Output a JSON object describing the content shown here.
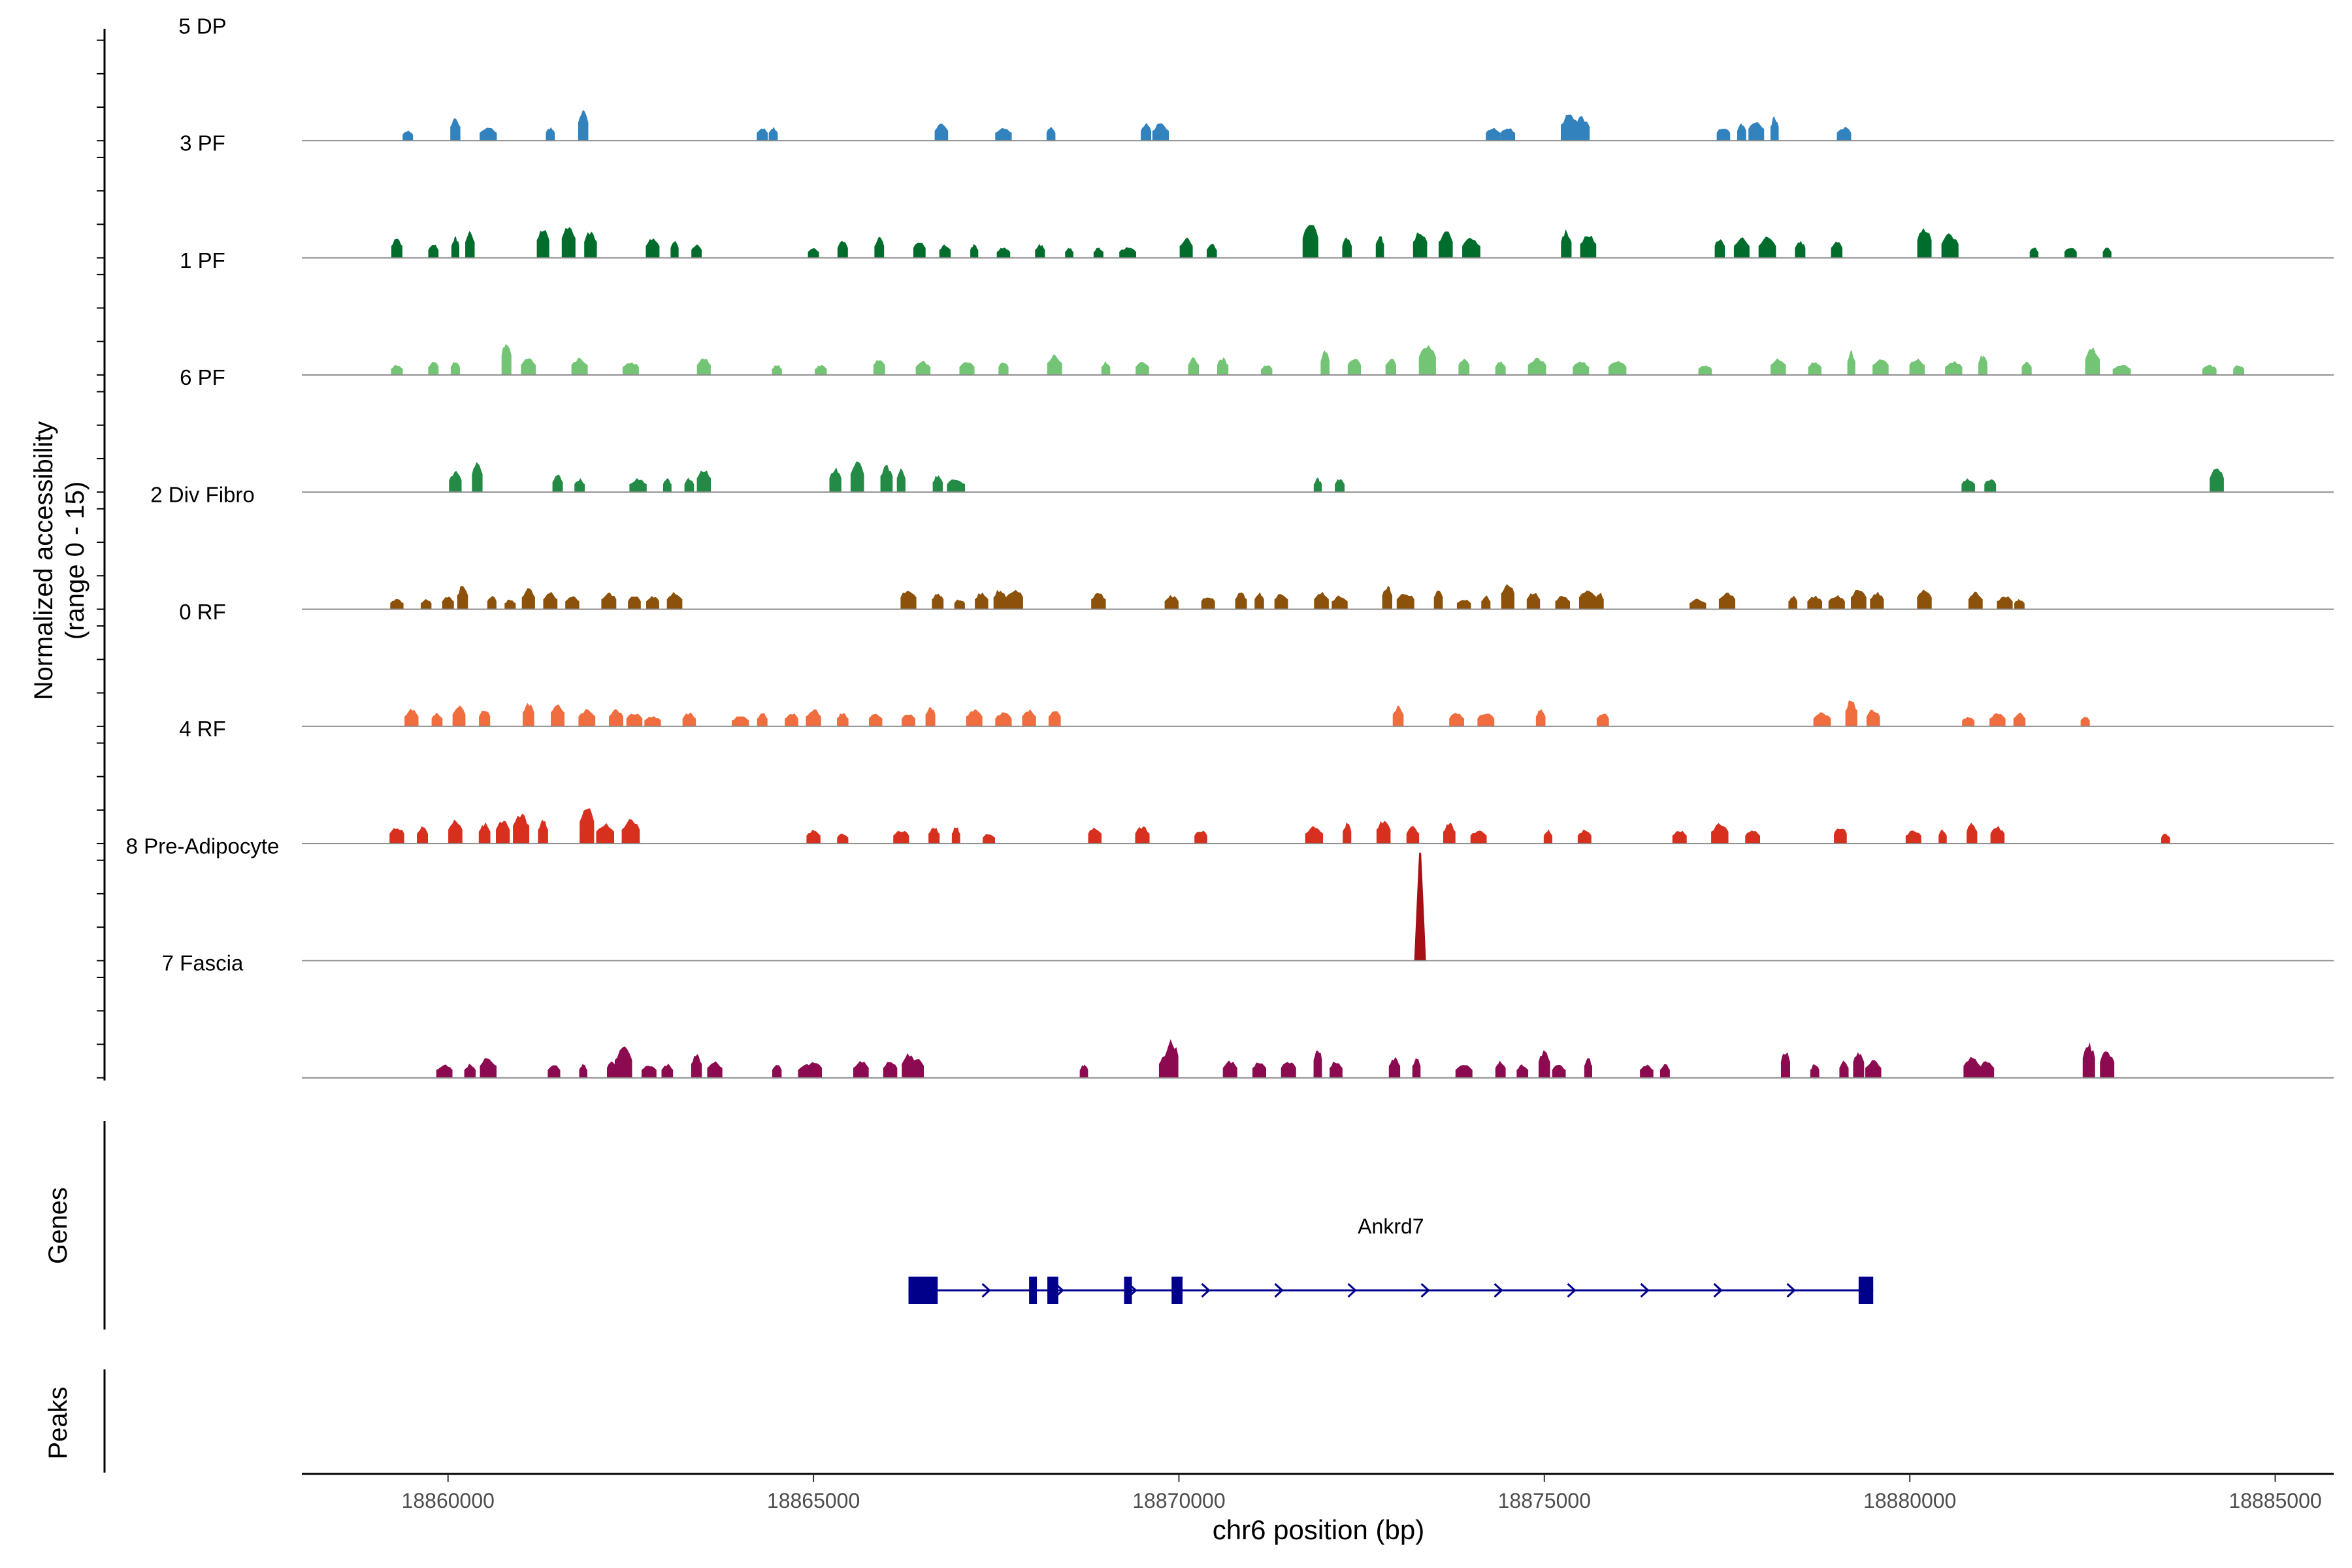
{
  "chart_data": {
    "type": "area",
    "title": "",
    "chromosome": "chr6",
    "xlabel": "chr6 position (bp)",
    "ylabel_line1": "Normalized accessibility",
    "ylabel_line2": "(range 0 - 15)",
    "xlim": [
      18858000,
      18885800
    ],
    "ylim": [
      0,
      15
    ],
    "x_ticks": [
      18860000,
      18865000,
      18870000,
      18875000,
      18880000,
      18885000
    ],
    "x_tick_labels": [
      "18860000",
      "18865000",
      "18870000",
      "18875000",
      "18880000",
      "18885000"
    ],
    "tracks": [
      {
        "name": "5 DP",
        "color": "#3182bd",
        "peaks": [
          [
            18859450,
            1.5
          ],
          [
            18860100,
            3.5
          ],
          [
            18860550,
            2
          ],
          [
            18861400,
            2
          ],
          [
            18861850,
            4.5
          ],
          [
            18864300,
            2
          ],
          [
            18864450,
            2
          ],
          [
            18866750,
            2.5
          ],
          [
            18867600,
            2
          ],
          [
            18868250,
            2
          ],
          [
            18869550,
            2.5
          ],
          [
            18869750,
            2.5
          ],
          [
            18874300,
            2
          ],
          [
            18874500,
            2
          ],
          [
            18875350,
            4
          ],
          [
            18875500,
            3.5
          ],
          [
            18877450,
            2
          ],
          [
            18877700,
            2.5
          ],
          [
            18877900,
            3
          ],
          [
            18878150,
            3.5
          ],
          [
            18879100,
            2
          ]
        ]
      },
      {
        "name": "3 PF",
        "color": "#006d2c",
        "peaks": [
          [
            18859300,
            3
          ],
          [
            18859800,
            2
          ],
          [
            18860100,
            3
          ],
          [
            18860300,
            4
          ],
          [
            18861300,
            4.5
          ],
          [
            18861650,
            5
          ],
          [
            18861950,
            4
          ],
          [
            18862800,
            3
          ],
          [
            18863100,
            2.5
          ],
          [
            18863400,
            2
          ],
          [
            18865000,
            1.5
          ],
          [
            18865400,
            2.5
          ],
          [
            18865900,
            3
          ],
          [
            18866450,
            2.5
          ],
          [
            18866800,
            2
          ],
          [
            18867200,
            2
          ],
          [
            18867600,
            1.5
          ],
          [
            18868100,
            2
          ],
          [
            18868500,
            1.5
          ],
          [
            18868900,
            1.5
          ],
          [
            18869300,
            1.5
          ],
          [
            18870100,
            3
          ],
          [
            18870450,
            2
          ],
          [
            18871800,
            5
          ],
          [
            18872300,
            3
          ],
          [
            18872750,
            3.5
          ],
          [
            18873300,
            4
          ],
          [
            18873650,
            4
          ],
          [
            18874000,
            3
          ],
          [
            18875300,
            4
          ],
          [
            18875600,
            3.5
          ],
          [
            18877400,
            3
          ],
          [
            18877700,
            3
          ],
          [
            18878050,
            3
          ],
          [
            18878500,
            2.5
          ],
          [
            18879000,
            2.5
          ],
          [
            18880200,
            4.5
          ],
          [
            18880550,
            3.5
          ],
          [
            18881700,
            1.5
          ],
          [
            18882200,
            1.5
          ],
          [
            18882700,
            1.5
          ]
        ]
      },
      {
        "name": "1 PF",
        "color": "#74c476",
        "peaks": [
          [
            18859300,
            1.5
          ],
          [
            18859800,
            2
          ],
          [
            18860100,
            2
          ],
          [
            18860800,
            5
          ],
          [
            18861100,
            2.5
          ],
          [
            18861800,
            2.5
          ],
          [
            18862500,
            2
          ],
          [
            18863500,
            2.5
          ],
          [
            18864500,
            1.5
          ],
          [
            18865100,
            1.5
          ],
          [
            18865900,
            2.5
          ],
          [
            18866500,
            2
          ],
          [
            18867100,
            2
          ],
          [
            18867600,
            2
          ],
          [
            18868300,
            3
          ],
          [
            18869000,
            2
          ],
          [
            18869500,
            2
          ],
          [
            18870200,
            2.5
          ],
          [
            18870600,
            2.5
          ],
          [
            18871200,
            1.5
          ],
          [
            18872000,
            3.5
          ],
          [
            18872400,
            2.5
          ],
          [
            18872900,
            2.5
          ],
          [
            18873400,
            4.5
          ],
          [
            18873900,
            2.5
          ],
          [
            18874400,
            2
          ],
          [
            18874900,
            2.5
          ],
          [
            18875500,
            2
          ],
          [
            18876000,
            2
          ],
          [
            18877200,
            1.5
          ],
          [
            18878200,
            2.5
          ],
          [
            18878700,
            2
          ],
          [
            18879200,
            3.5
          ],
          [
            18879600,
            2.5
          ],
          [
            18880100,
            2.5
          ],
          [
            18880600,
            2
          ],
          [
            18881000,
            3
          ],
          [
            18881600,
            2
          ],
          [
            18882500,
            4
          ],
          [
            18882900,
            1.5
          ],
          [
            18884100,
            1.5
          ],
          [
            18884500,
            1.5
          ]
        ]
      },
      {
        "name": "6 PF",
        "color": "#238b45",
        "peaks": [
          [
            18860100,
            3
          ],
          [
            18860400,
            4.5
          ],
          [
            18861500,
            2.5
          ],
          [
            18861800,
            2
          ],
          [
            18862600,
            2
          ],
          [
            18863000,
            2
          ],
          [
            18863300,
            2
          ],
          [
            18863500,
            3.5
          ],
          [
            18865300,
            3.5
          ],
          [
            18865600,
            4.5
          ],
          [
            18866000,
            4
          ],
          [
            18866200,
            3.5
          ],
          [
            18866700,
            2.5
          ],
          [
            18866950,
            2
          ],
          [
            18871900,
            2
          ],
          [
            18872200,
            2
          ],
          [
            18880800,
            2
          ],
          [
            18881100,
            2
          ],
          [
            18884200,
            3.5
          ]
        ]
      },
      {
        "name": "2 Div Fibro",
        "color": "#8c510a",
        "peaks": [
          [
            18859300,
            1.5
          ],
          [
            18859700,
            1.5
          ],
          [
            18860000,
            2
          ],
          [
            18860200,
            3.5
          ],
          [
            18860600,
            2
          ],
          [
            18860850,
            1.5
          ],
          [
            18861100,
            3
          ],
          [
            18861400,
            2.5
          ],
          [
            18861700,
            2
          ],
          [
            18862200,
            2.5
          ],
          [
            18862550,
            2
          ],
          [
            18862800,
            2
          ],
          [
            18863100,
            2.5
          ],
          [
            18866300,
            3
          ],
          [
            18866700,
            2.5
          ],
          [
            18867000,
            1.5
          ],
          [
            18867300,
            2.5
          ],
          [
            18867550,
            3
          ],
          [
            18867750,
            3
          ],
          [
            18868900,
            2.5
          ],
          [
            18869900,
            2
          ],
          [
            18870400,
            2
          ],
          [
            18870850,
            2.5
          ],
          [
            18871100,
            2.5
          ],
          [
            18871400,
            2.5
          ],
          [
            18871950,
            2.5
          ],
          [
            18872200,
            2
          ],
          [
            18872850,
            3.5
          ],
          [
            18873100,
            2.5
          ],
          [
            18873550,
            3
          ],
          [
            18873900,
            1.5
          ],
          [
            18874200,
            2
          ],
          [
            18874500,
            4
          ],
          [
            18874850,
            2.5
          ],
          [
            18875250,
            2
          ],
          [
            18875600,
            3
          ],
          [
            18875750,
            2.5
          ],
          [
            18877100,
            1.5
          ],
          [
            18877500,
            2.5
          ],
          [
            18878400,
            2
          ],
          [
            18878700,
            2
          ],
          [
            18879000,
            2
          ],
          [
            18879300,
            3
          ],
          [
            18879550,
            2.5
          ],
          [
            18880200,
            3
          ],
          [
            18880900,
            2.5
          ],
          [
            18881300,
            2
          ],
          [
            18881500,
            1.5
          ]
        ]
      },
      {
        "name": "0 RF",
        "color": "#ef6d3f",
        "peaks": [
          [
            18859500,
            2.5
          ],
          [
            18859850,
            2
          ],
          [
            18860150,
            3
          ],
          [
            18860500,
            2.5
          ],
          [
            18861100,
            3.5
          ],
          [
            18861500,
            3.5
          ],
          [
            18861900,
            2.5
          ],
          [
            18862300,
            2.5
          ],
          [
            18862550,
            2
          ],
          [
            18862800,
            1.5
          ],
          [
            18863300,
            2
          ],
          [
            18864000,
            1.5
          ],
          [
            18864300,
            2
          ],
          [
            18864700,
            2
          ],
          [
            18865000,
            2.5
          ],
          [
            18865400,
            2
          ],
          [
            18865850,
            2
          ],
          [
            18866300,
            2
          ],
          [
            18866600,
            3
          ],
          [
            18867200,
            2.5
          ],
          [
            18867600,
            2
          ],
          [
            18867950,
            2.5
          ],
          [
            18868300,
            2.5
          ],
          [
            18873000,
            3
          ],
          [
            18873800,
            2
          ],
          [
            18874200,
            2
          ],
          [
            18874950,
            2.5
          ],
          [
            18875800,
            2
          ],
          [
            18878800,
            2
          ],
          [
            18879200,
            4
          ],
          [
            18879500,
            2.5
          ],
          [
            18880800,
            1.5
          ],
          [
            18881200,
            2
          ],
          [
            18881500,
            2
          ],
          [
            18882400,
            1.5
          ]
        ]
      },
      {
        "name": "4 RF",
        "color": "#d7301f",
        "peaks": [
          [
            18859300,
            2.5
          ],
          [
            18859650,
            2.5
          ],
          [
            18860100,
            3.5
          ],
          [
            18860500,
            3
          ],
          [
            18860750,
            3.5
          ],
          [
            18861000,
            4.5
          ],
          [
            18861300,
            3.5
          ],
          [
            18861900,
            5.5
          ],
          [
            18862150,
            3
          ],
          [
            18862500,
            3.5
          ],
          [
            18865000,
            2
          ],
          [
            18865400,
            1.5
          ],
          [
            18866200,
            2
          ],
          [
            18866650,
            2.5
          ],
          [
            18866950,
            2.5
          ],
          [
            18867400,
            1.5
          ],
          [
            18868850,
            2.5
          ],
          [
            18869500,
            2.5
          ],
          [
            18870300,
            2
          ],
          [
            18871850,
            2.5
          ],
          [
            18872300,
            3
          ],
          [
            18872800,
            3.5
          ],
          [
            18873200,
            2.5
          ],
          [
            18873700,
            3
          ],
          [
            18874100,
            2
          ],
          [
            18875050,
            2
          ],
          [
            18875550,
            2
          ],
          [
            18876850,
            2
          ],
          [
            18877400,
            3
          ],
          [
            18877850,
            2
          ],
          [
            18879050,
            2.5
          ],
          [
            18880050,
            2
          ],
          [
            18880450,
            2
          ],
          [
            18880850,
            3
          ],
          [
            18881200,
            2.5
          ],
          [
            18883500,
            1.5
          ]
        ]
      },
      {
        "name": "8 Pre-Adipocyte",
        "color": "#a50f15",
        "peaks": [
          [
            18873300,
            15
          ]
        ]
      },
      {
        "name": "7 Fascia",
        "color": "#8b0a50",
        "peaks": [
          [
            18859950,
            2
          ],
          [
            18860300,
            2
          ],
          [
            18860550,
            3
          ],
          [
            18861450,
            2
          ],
          [
            18861850,
            2
          ],
          [
            18862250,
            2.5
          ],
          [
            18862400,
            4.5
          ],
          [
            18862750,
            2
          ],
          [
            18863000,
            2
          ],
          [
            18863400,
            3.5
          ],
          [
            18863650,
            2.5
          ],
          [
            18864500,
            2
          ],
          [
            18864900,
            2
          ],
          [
            18865000,
            2.5
          ],
          [
            18865650,
            2.5
          ],
          [
            18866050,
            2.5
          ],
          [
            18866300,
            3.5
          ],
          [
            18866400,
            3
          ],
          [
            18868700,
            2
          ],
          [
            18869800,
            3.5
          ],
          [
            18869900,
            5.5
          ],
          [
            18870700,
            2.5
          ],
          [
            18871100,
            2.5
          ],
          [
            18871500,
            2.5
          ],
          [
            18871900,
            4.5
          ],
          [
            18872150,
            2.5
          ],
          [
            18872950,
            3
          ],
          [
            18873250,
            3
          ],
          [
            18873900,
            2
          ],
          [
            18874400,
            2.5
          ],
          [
            18874700,
            2
          ],
          [
            18875000,
            4
          ],
          [
            18875200,
            2
          ],
          [
            18875600,
            3
          ],
          [
            18876400,
            2
          ],
          [
            18876650,
            2
          ],
          [
            18878300,
            4
          ],
          [
            18878700,
            2
          ],
          [
            18879100,
            2.5
          ],
          [
            18879300,
            4
          ],
          [
            18879500,
            2.5
          ],
          [
            18880850,
            3
          ],
          [
            18881050,
            2.5
          ],
          [
            18882450,
            5
          ],
          [
            18882700,
            4
          ]
        ]
      }
    ],
    "genes_label": "Genes",
    "peaks_label": "Peaks",
    "genes": [
      {
        "name": "Ankrd7",
        "strand": "+",
        "start": 18866300,
        "end": 18879500,
        "exons": [
          [
            18866300,
            18866700
          ],
          [
            18867950,
            18868050
          ],
          [
            18868200,
            18868350
          ],
          [
            18869250,
            18869350
          ],
          [
            18869900,
            18870050
          ],
          [
            18879300,
            18879500
          ]
        ]
      }
    ]
  }
}
